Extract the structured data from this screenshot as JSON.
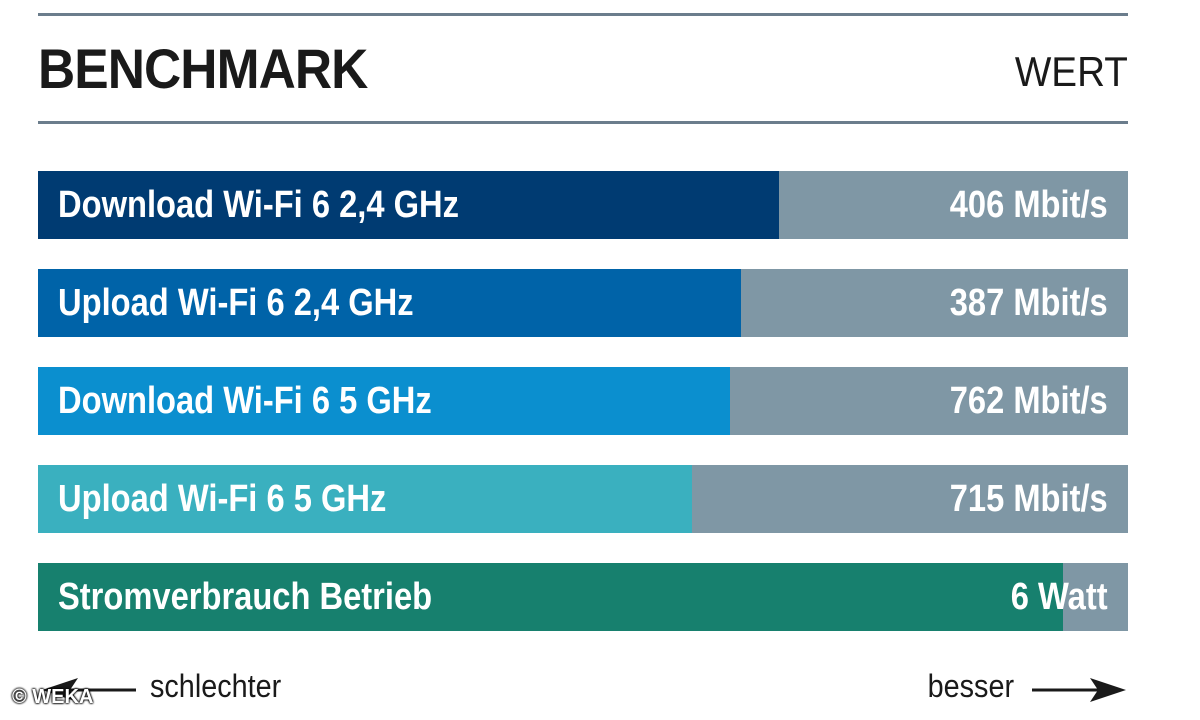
{
  "chart_data": {
    "type": "bar",
    "title": "BENCHMARK",
    "value_header": "WERT",
    "categories": [
      "Download Wi-Fi 6 2,4 GHz",
      "Upload Wi-Fi 6 2,4 GHz",
      "Download Wi-Fi 6 5 GHz",
      "Upload Wi-Fi 6 5 GHz",
      "Stromverbrauch Betrieb"
    ],
    "value_labels": [
      "406 Mbit/s",
      "387 Mbit/s",
      "762 Mbit/s",
      "715 Mbit/s",
      "6 Watt"
    ],
    "values": [
      406,
      387,
      762,
      715,
      6
    ],
    "units": [
      "Mbit/s",
      "Mbit/s",
      "Mbit/s",
      "Mbit/s",
      "Watt"
    ],
    "scores": [
      0.68,
      0.645,
      0.635,
      0.6,
      0.94
    ],
    "colors": [
      "#003b72",
      "#0063a8",
      "#0b8fcf",
      "#3ab0bf",
      "#17806e"
    ],
    "track_color": "#7f97a5",
    "legend": {
      "worse": "schlechter",
      "better": "besser"
    }
  },
  "credit": "© WEKA"
}
